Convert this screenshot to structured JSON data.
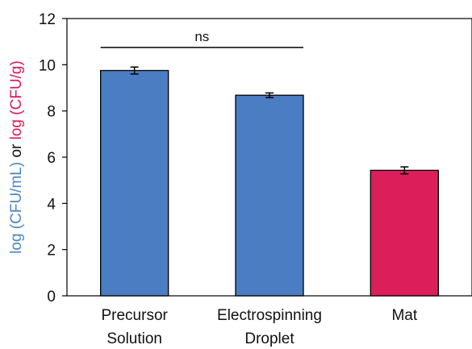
{
  "chart_data": {
    "type": "bar",
    "categories": [
      [
        "Precursor",
        "Solution"
      ],
      [
        "Electrospinning",
        "Droplet"
      ],
      [
        "Mat"
      ]
    ],
    "values": [
      9.75,
      8.68,
      5.43
    ],
    "errors": [
      0.15,
      0.1,
      0.15
    ],
    "bar_colors": [
      "#4a7dc2",
      "#4a7dc2",
      "#dc1e5a"
    ],
    "ylim": [
      0,
      12
    ],
    "yticks": [
      0,
      2,
      4,
      6,
      8,
      10,
      12
    ],
    "ylabel_parts": [
      {
        "text": "log (CFU/mL)",
        "color": "#4a86c6"
      },
      {
        "text": " or ",
        "color": "#111111"
      },
      {
        "text": "log (CFU/g)",
        "color": "#d81b56"
      }
    ],
    "annotations": [
      {
        "text": "ns",
        "from": 0,
        "to": 1,
        "y": 10.75
      }
    ],
    "grid": false,
    "legend": "none"
  }
}
